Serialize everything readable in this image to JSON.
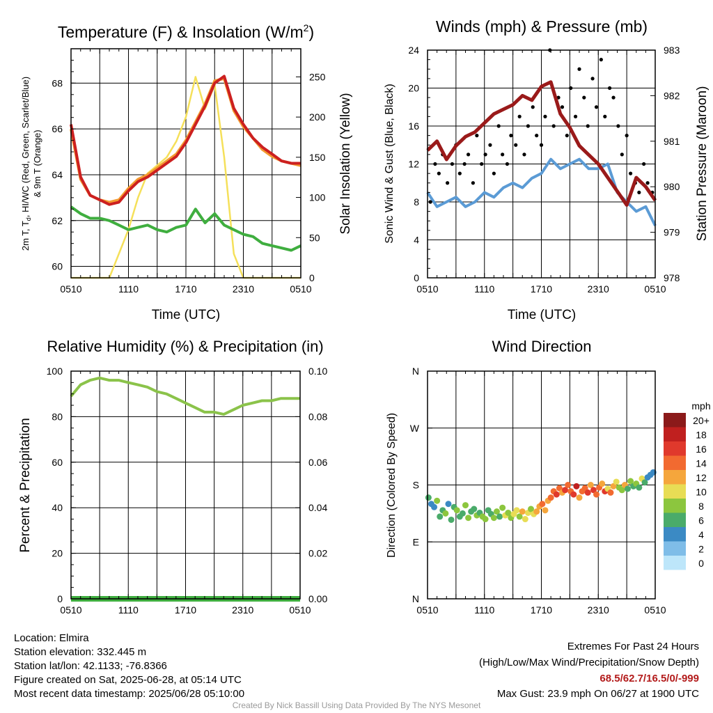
{
  "chart_data": [
    {
      "type": "line",
      "title_main": "Temperature (F) & Insolation (W/m",
      "title_sup": "2",
      "title_close": ")",
      "xlabel": "Time (UTC)",
      "ylabel_lines": [
        "2m T, T",
        "d",
        ", HI/WC (Red, Green, Scarlet/Blue)",
        "& 9m T (Orange)"
      ],
      "ylabel2": "Solar Insolation (Yellow)",
      "x_ticks": [
        "0510",
        "1110",
        "1710",
        "2310",
        "0510"
      ],
      "ylim": [
        59.5,
        69.5
      ],
      "y_ticks": [
        60,
        62,
        64,
        66,
        68
      ],
      "y2lim": [
        0,
        285
      ],
      "y2_ticks": [
        0,
        50,
        100,
        150,
        200,
        250
      ],
      "grid": true,
      "series": [
        {
          "color": "#f39a30",
          "x": [
            0,
            1,
            2,
            3,
            4,
            5,
            6,
            7,
            8,
            9,
            10,
            11,
            12,
            13,
            14,
            15,
            16,
            17,
            18,
            19,
            20,
            21,
            22,
            23,
            24
          ],
          "values": [
            66.0,
            63.8,
            63.1,
            62.9,
            62.8,
            62.9,
            63.4,
            63.8,
            64.0,
            64.3,
            64.6,
            64.9,
            65.5,
            66.3,
            67.1,
            68.1,
            68.2,
            66.8,
            66.1,
            65.6,
            65.1,
            64.8,
            64.6,
            64.5,
            64.4
          ]
        },
        {
          "color": "#cc2020",
          "x": [
            0,
            1,
            2,
            3,
            4,
            5,
            6,
            7,
            8,
            9,
            10,
            11,
            12,
            13,
            14,
            15,
            16,
            17,
            18,
            19,
            20,
            21,
            22,
            23,
            24
          ],
          "values": [
            66.2,
            63.9,
            63.1,
            62.9,
            62.7,
            62.8,
            63.3,
            63.7,
            63.9,
            64.2,
            64.5,
            64.8,
            65.4,
            66.2,
            67.0,
            68.0,
            68.3,
            66.9,
            66.2,
            65.6,
            65.2,
            64.9,
            64.6,
            64.5,
            64.5
          ]
        },
        {
          "color": "#3fae3f",
          "x": [
            0,
            1,
            2,
            3,
            4,
            5,
            6,
            7,
            8,
            9,
            10,
            11,
            12,
            13,
            14,
            15,
            16,
            17,
            18,
            19,
            20,
            21,
            22,
            23,
            24
          ],
          "values": [
            62.6,
            62.3,
            62.1,
            62.1,
            62.0,
            61.8,
            61.6,
            61.7,
            61.8,
            61.6,
            61.5,
            61.7,
            61.8,
            62.5,
            61.9,
            62.3,
            61.8,
            61.6,
            61.4,
            61.3,
            61.0,
            60.9,
            60.8,
            60.7,
            60.9
          ]
        }
      ],
      "series2": [
        {
          "color": "#f5e05a",
          "x": [
            0,
            1,
            2,
            3,
            4,
            5,
            6,
            7,
            8,
            9,
            10,
            11,
            12,
            13,
            14,
            15,
            16,
            17,
            18,
            19,
            20,
            21,
            22,
            23,
            24
          ],
          "values": [
            0,
            0,
            0,
            0,
            0,
            30,
            60,
            100,
            130,
            140,
            150,
            170,
            200,
            250,
            210,
            240,
            150,
            30,
            0,
            0,
            0,
            0,
            0,
            0,
            0
          ]
        }
      ]
    },
    {
      "type": "line",
      "title": "Winds (mph) & Pressure (mb)",
      "xlabel": "Time (UTC)",
      "ylabel": "Sonic Wind & Gust (Blue, Black)",
      "ylabel2": "Station Pressure (Maroon)",
      "x_ticks": [
        "0510",
        "1110",
        "1710",
        "2310",
        "0510"
      ],
      "ylim": [
        0,
        24
      ],
      "y_ticks": [
        0,
        4,
        8,
        12,
        16,
        20,
        24
      ],
      "y2lim": [
        978,
        983
      ],
      "y2_ticks": [
        978,
        979,
        980,
        981,
        982,
        983
      ],
      "grid": true,
      "series": [
        {
          "type": "line",
          "color": "#5b9bd5",
          "x": [
            0,
            1,
            2,
            3,
            4,
            5,
            6,
            7,
            8,
            9,
            10,
            11,
            12,
            13,
            14,
            15,
            16,
            17,
            18,
            19,
            20,
            21,
            22,
            23,
            24
          ],
          "values": [
            9.0,
            7.5,
            8.0,
            8.5,
            7.5,
            8.0,
            9.0,
            8.5,
            9.5,
            10.0,
            9.5,
            10.5,
            11.0,
            12.5,
            11.5,
            12.0,
            12.5,
            11.5,
            11.5,
            12.0,
            9.0,
            8.0,
            7.0,
            7.5,
            5.5
          ]
        },
        {
          "type": "scatter",
          "color": "#000000",
          "x": [
            0.3,
            0.8,
            1.2,
            1.6,
            2.1,
            2.6,
            3.0,
            3.4,
            3.9,
            4.3,
            4.8,
            5.2,
            5.7,
            6.1,
            6.6,
            7.0,
            7.5,
            7.9,
            8.4,
            8.8,
            9.3,
            9.7,
            10.2,
            10.6,
            11.1,
            11.5,
            12.0,
            12.4,
            12.9,
            13.3,
            13.8,
            14.2,
            14.7,
            15.1,
            15.6,
            16.0,
            16.5,
            16.9,
            17.4,
            17.8,
            18.3,
            18.7,
            19.2,
            19.6,
            20.1,
            20.5,
            21.0,
            21.4,
            21.9,
            22.3,
            22.8,
            23.2,
            23.7
          ],
          "values": [
            8,
            12,
            11,
            13,
            10,
            12,
            14,
            11,
            12,
            13,
            10,
            15,
            12,
            13,
            14,
            11,
            16,
            13,
            12,
            15,
            14,
            17,
            13,
            16,
            18,
            15,
            14,
            17,
            24,
            16,
            19,
            18,
            15,
            20,
            17,
            22,
            19,
            16,
            21,
            18,
            23,
            17,
            20,
            19,
            16,
            13,
            15,
            11,
            10,
            9,
            12,
            10,
            9
          ]
        }
      ],
      "series2": [
        {
          "color": "#9a1a1a",
          "x": [
            0,
            1,
            2,
            3,
            4,
            5,
            6,
            7,
            8,
            9,
            10,
            11,
            12,
            13,
            14,
            15,
            16,
            17,
            18,
            19,
            20,
            21,
            22,
            23,
            24
          ],
          "values": [
            980.8,
            981.0,
            980.6,
            980.9,
            981.1,
            981.2,
            981.4,
            981.6,
            981.7,
            981.8,
            982.0,
            981.9,
            982.2,
            982.3,
            981.6,
            981.3,
            980.9,
            980.7,
            980.5,
            980.2,
            979.9,
            979.6,
            980.2,
            980.0,
            979.7
          ]
        }
      ]
    },
    {
      "type": "line",
      "title": "Relative Humidity (%) & Precipitation (in)",
      "ylabel": "Percent & Precipitation",
      "x_ticks": [
        "0510",
        "1110",
        "1710",
        "2310",
        "0510"
      ],
      "ylim": [
        0,
        100
      ],
      "y_ticks": [
        0,
        20,
        40,
        60,
        80,
        100
      ],
      "y2lim": [
        0,
        0.1
      ],
      "y2_ticks": [
        "0.00",
        "0.02",
        "0.04",
        "0.06",
        "0.08",
        "0.10"
      ],
      "grid": true,
      "series": [
        {
          "color": "#8bc34a",
          "x": [
            0,
            1,
            2,
            3,
            4,
            5,
            6,
            7,
            8,
            9,
            10,
            11,
            12,
            13,
            14,
            15,
            16,
            17,
            18,
            19,
            20,
            21,
            22,
            23,
            24
          ],
          "values": [
            89,
            94,
            96,
            97,
            96,
            96,
            95,
            94,
            93,
            91,
            90,
            88,
            86,
            84,
            82,
            82,
            81,
            83,
            85,
            86,
            87,
            87,
            88,
            88,
            88
          ]
        },
        {
          "color": "#3fae3f",
          "x": [
            0,
            24
          ],
          "values": [
            0,
            0
          ]
        }
      ]
    },
    {
      "type": "scatter",
      "title": "Wind Direction",
      "ylabel": "Direction (Colored By Speed)",
      "x_ticks": [
        "0510",
        "1110",
        "1710",
        "2310",
        "0510"
      ],
      "y_ticks": [
        "N",
        "E",
        "S",
        "W",
        "N"
      ],
      "ylim": [
        0,
        360
      ],
      "grid": true,
      "legend_title": "mph",
      "legend_labels": [
        "20+",
        "18",
        "16",
        "14",
        "12",
        "10",
        "8",
        "6",
        "4",
        "2",
        "0"
      ],
      "legend_colors": [
        "#8b1a1a",
        "#c0201f",
        "#e0392c",
        "#f26a30",
        "#f5a63c",
        "#e8dd55",
        "#8cc63e",
        "#4aab6a",
        "#3b8ac4",
        "#7fbde8",
        "#bde6fa"
      ],
      "x": [
        0.1,
        0.4,
        0.7,
        1.0,
        1.3,
        1.6,
        1.9,
        2.2,
        2.5,
        2.8,
        3.1,
        3.4,
        3.7,
        4.0,
        4.3,
        4.6,
        4.9,
        5.2,
        5.5,
        5.8,
        6.1,
        6.4,
        6.7,
        7.0,
        7.3,
        7.6,
        7.9,
        8.2,
        8.5,
        8.8,
        9.1,
        9.4,
        9.7,
        10.0,
        10.3,
        10.6,
        10.9,
        11.2,
        11.5,
        11.8,
        12.1,
        12.4,
        12.7,
        13.0,
        13.3,
        13.6,
        13.9,
        14.2,
        14.5,
        14.8,
        15.1,
        15.4,
        15.7,
        16.0,
        16.3,
        16.6,
        16.9,
        17.2,
        17.5,
        17.8,
        18.1,
        18.4,
        18.7,
        19.0,
        19.3,
        19.6,
        19.9,
        20.2,
        20.5,
        20.8,
        21.1,
        21.4,
        21.7,
        22.0,
        22.3,
        22.6,
        22.9,
        23.2,
        23.5,
        23.8
      ],
      "values": [
        160,
        150,
        145,
        155,
        130,
        140,
        135,
        150,
        125,
        145,
        140,
        130,
        135,
        148,
        128,
        138,
        142,
        132,
        136,
        130,
        126,
        140,
        134,
        128,
        138,
        130,
        144,
        132,
        136,
        128,
        134,
        140,
        130,
        138,
        126,
        136,
        142,
        134,
        138,
        146,
        150,
        140,
        155,
        160,
        170,
        165,
        175,
        168,
        172,
        180,
        170,
        165,
        178,
        160,
        170,
        175,
        168,
        180,
        172,
        165,
        176,
        182,
        170,
        174,
        168,
        178,
        185,
        176,
        172,
        180,
        174,
        186,
        178,
        182,
        176,
        190,
        184,
        192,
        196,
        200
      ],
      "speeds": [
        6,
        4,
        5,
        8,
        7,
        6,
        8,
        5,
        7,
        6,
        8,
        7,
        6,
        8,
        9,
        7,
        6,
        8,
        7,
        9,
        8,
        7,
        6,
        8,
        9,
        7,
        8,
        10,
        9,
        8,
        11,
        10,
        9,
        12,
        11,
        10,
        9,
        11,
        13,
        12,
        14,
        13,
        12,
        15,
        14,
        16,
        15,
        13,
        17,
        15,
        14,
        16,
        18,
        12,
        15,
        14,
        16,
        13,
        17,
        15,
        14,
        12,
        16,
        11,
        15,
        13,
        10,
        9,
        8,
        12,
        7,
        9,
        6,
        8,
        7,
        10,
        6,
        5,
        4,
        5
      ]
    }
  ],
  "footer": {
    "location": "Location: Elmira",
    "elevation": "Station elevation: 332.445 m",
    "latlon": "Station lat/lon: 42.1133; -76.8366",
    "created": "Figure created on Sat, 2025-06-28, at 05:14 UTC",
    "recent": "Most recent data timestamp: 2025/06/28 05:10:00",
    "extremes_title": "Extremes For Past 24 Hours",
    "extremes_sub": "(High/Low/Max Wind/Precipitation/Snow Depth)",
    "extremes_values": "68.5/62.7/16.5/0/-999",
    "max_gust": "Max Gust: 23.9 mph On 06/27 at 1900 UTC",
    "credit": "Created By Nick Bassill Using Data Provided By The NYS Mesonet"
  }
}
